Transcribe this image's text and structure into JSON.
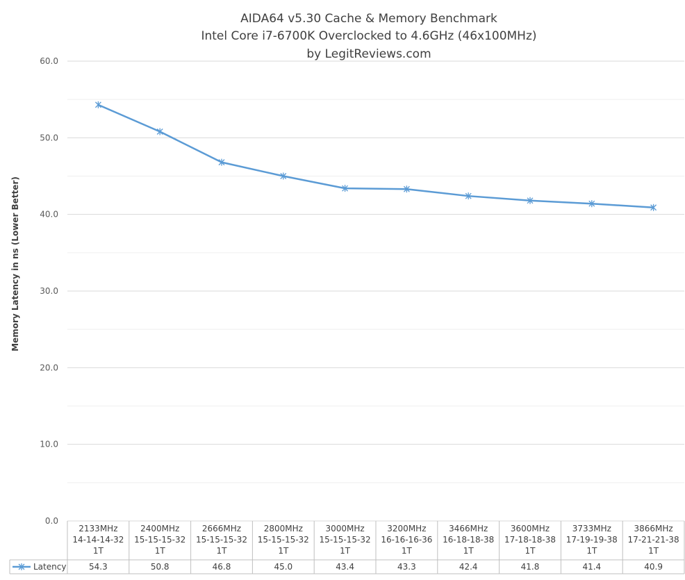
{
  "colors": {
    "series": "#5b9bd5",
    "grid_major": "#d9d9d9",
    "grid_minor": "#efefef",
    "table_border": "#bfbfbf",
    "text": "#404040"
  },
  "chart_data": {
    "type": "line",
    "title_lines": [
      "AIDA64 v5.30 Cache & Memory Benchmark",
      "Intel Core i7-6700K Overclocked to 4.6GHz (46x100MHz)",
      "by LegitReviews.com"
    ],
    "ylabel": "Memory Latency in ns (Lower Better)",
    "xlabel": "",
    "ylim": [
      0,
      60
    ],
    "yticks": [
      "0.0",
      "10.0",
      "20.0",
      "30.0",
      "40.0",
      "50.0",
      "60.0"
    ],
    "grid": true,
    "categories": [
      [
        "2133MHz",
        "14-14-14-32",
        "1T"
      ],
      [
        "2400MHz",
        "15-15-15-32",
        "1T"
      ],
      [
        "2666MHz",
        "15-15-15-32",
        "1T"
      ],
      [
        "2800MHz",
        "15-15-15-32",
        "1T"
      ],
      [
        "3000MHz",
        "15-15-15-32",
        "1T"
      ],
      [
        "3200MHz",
        "16-16-16-36",
        "1T"
      ],
      [
        "3466MHz",
        "16-18-18-38",
        "1T"
      ],
      [
        "3600MHz",
        "17-18-18-38",
        "1T"
      ],
      [
        "3733MHz",
        "17-19-19-38",
        "1T"
      ],
      [
        "3866MHz",
        "17-21-21-38",
        "1T"
      ]
    ],
    "series": [
      {
        "name": "Latency",
        "values": [
          54.3,
          50.8,
          46.8,
          45.0,
          43.4,
          43.3,
          42.4,
          41.8,
          41.4,
          40.9
        ],
        "labels": [
          "54.3",
          "50.8",
          "46.8",
          "45.0",
          "43.4",
          "43.3",
          "42.4",
          "41.8",
          "41.4",
          "40.9"
        ]
      }
    ],
    "legend_placement": "data-table"
  }
}
